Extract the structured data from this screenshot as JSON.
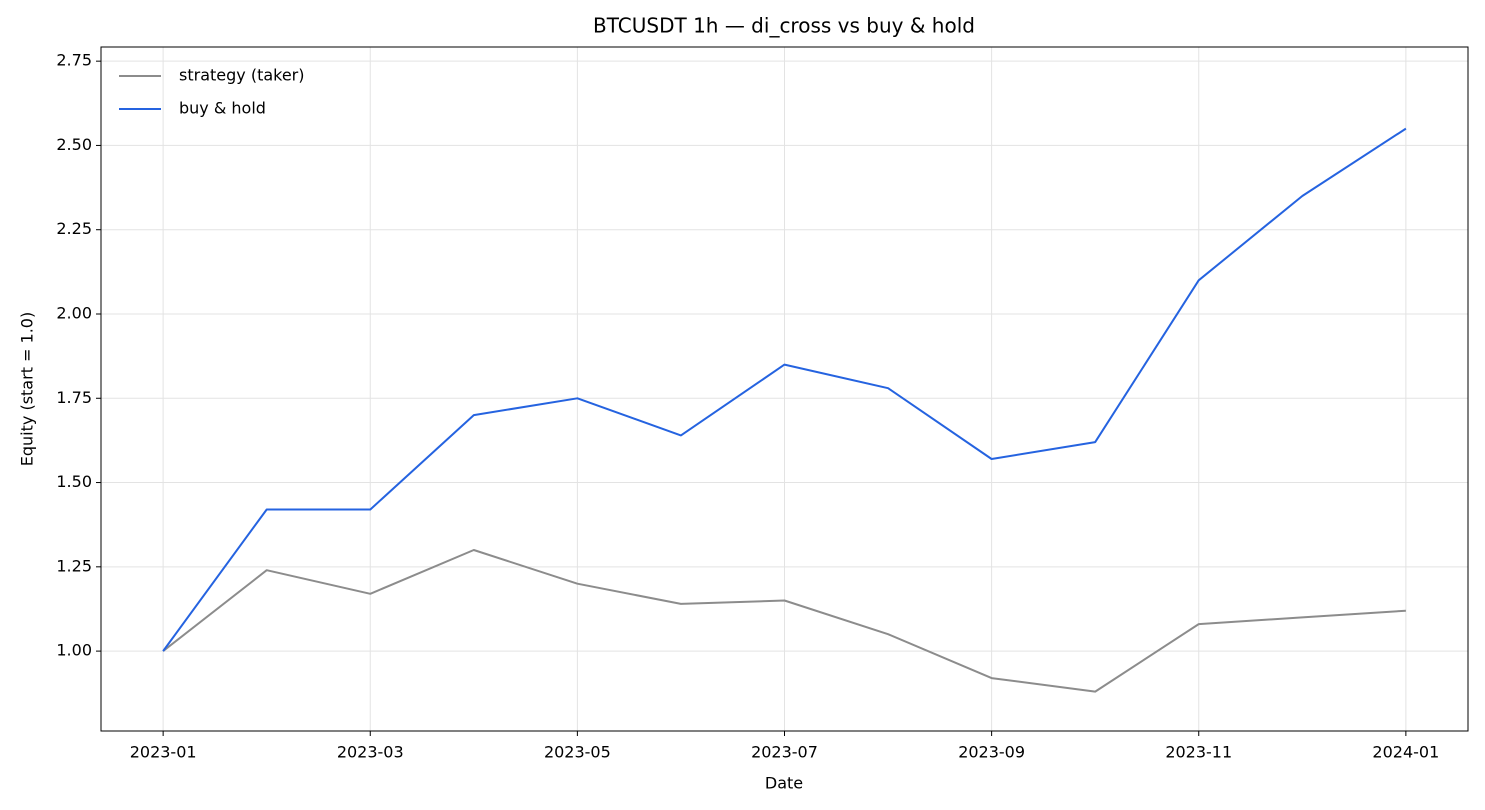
{
  "chart_data": {
    "type": "line",
    "title": "BTCUSDT 1h — di_cross vs buy & hold",
    "x_label": "Date",
    "y_label": "Equity (start = 1.0)",
    "x": [
      "2023-01",
      "2023-02",
      "2023-03",
      "2023-04",
      "2023-05",
      "2023-06",
      "2023-07",
      "2023-08",
      "2023-09",
      "2023-10",
      "2023-11",
      "2023-12",
      "2024-01"
    ],
    "series": [
      {
        "name": "strategy (taker)",
        "color": "#8c8c8c",
        "values": [
          1.0,
          1.24,
          1.17,
          1.3,
          1.2,
          1.14,
          1.15,
          1.05,
          0.92,
          0.88,
          1.08,
          1.1,
          1.12
        ]
      },
      {
        "name": "buy & hold",
        "color": "#2563e0",
        "values": [
          1.0,
          1.42,
          1.42,
          1.7,
          1.75,
          1.64,
          1.85,
          1.78,
          1.57,
          1.62,
          2.1,
          2.35,
          2.55
        ]
      }
    ],
    "xticks": [
      "2023-01",
      "2023-03",
      "2023-05",
      "2023-07",
      "2023-09",
      "2023-11",
      "2024-01"
    ],
    "ylim": [
      0.763,
      2.792
    ],
    "yticks": [
      {
        "value": 1.0,
        "label": "1.00"
      },
      {
        "value": 1.25,
        "label": "1.25"
      },
      {
        "value": 1.5,
        "label": "1.50"
      },
      {
        "value": 1.75,
        "label": "1.75"
      },
      {
        "value": 2.0,
        "label": "2.00"
      },
      {
        "value": 2.25,
        "label": "2.25"
      },
      {
        "value": 2.5,
        "label": "2.50"
      },
      {
        "value": 2.75,
        "label": "2.75"
      }
    ],
    "grid": true,
    "legend": "upper-left"
  }
}
